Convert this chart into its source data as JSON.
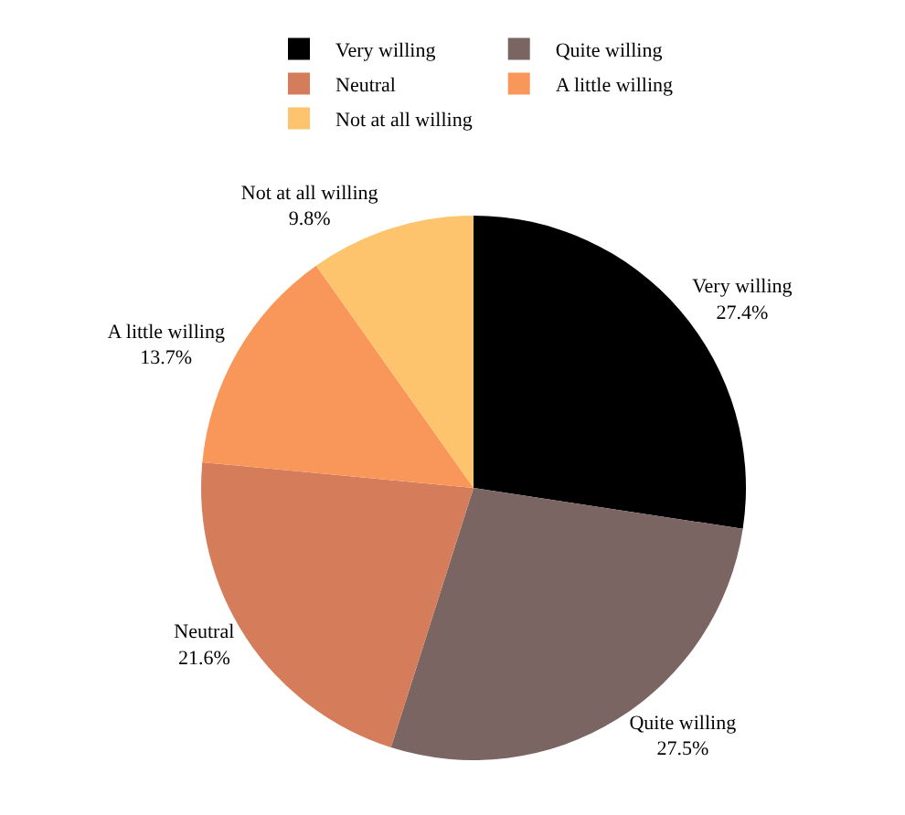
{
  "chart_data": {
    "type": "pie",
    "categories": [
      "Very willing",
      "Quite willing",
      "Neutral",
      "A little willing",
      "Not at all willing"
    ],
    "values": [
      27.4,
      27.5,
      21.6,
      13.7,
      9.8
    ],
    "value_labels": [
      "27.4%",
      "27.5%",
      "21.6%",
      "13.7%",
      "9.8%"
    ],
    "colors": [
      "#000000",
      "#7b6562",
      "#d57c5b",
      "#f9975a",
      "#fec46d"
    ],
    "legend": "top"
  }
}
